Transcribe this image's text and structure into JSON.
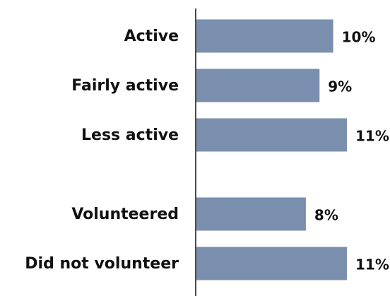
{
  "chart_data": {
    "type": "bar",
    "orientation": "horizontal",
    "categories": [
      "Active",
      "Fairly active",
      "Less active",
      null,
      "Volunteered",
      "Did not volunteer"
    ],
    "values": [
      10,
      9,
      11,
      null,
      8,
      11
    ],
    "value_labels": [
      "10%",
      "9%",
      "11%",
      null,
      "8%",
      "11%"
    ],
    "color": "#7a8fae"
  }
}
